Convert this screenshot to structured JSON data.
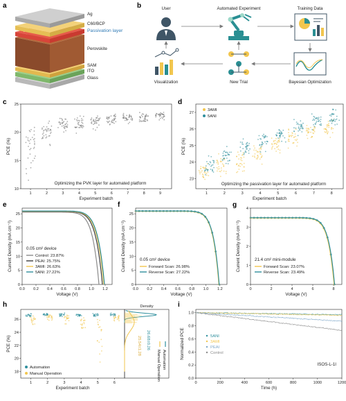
{
  "panel_letters": [
    "a",
    "b",
    "c",
    "d",
    "e",
    "f",
    "g",
    "h",
    "i"
  ],
  "colors": {
    "blue": "#2f8f9d",
    "teal": "#2a8f93",
    "yellow": "#f2c64e",
    "gray": "#8a8a8a",
    "dark": "#3b3b3b",
    "lightblue": "#7fa8c9",
    "orange": "#f0a040",
    "red": "#e14b45"
  },
  "panel_a": {
    "layers": [
      "Ag",
      "C60/BCP",
      "Passivation layer",
      "Perovskite",
      "SAM",
      "ITO",
      "Glass"
    ]
  },
  "panel_b": {
    "nodes": [
      "User",
      "Automated Experiment",
      "Training Data",
      "Visualization",
      "New Trial",
      "Bayesian Optimization"
    ]
  },
  "chart_data": [
    {
      "panel": "c",
      "type": "scatter",
      "xlabel": "Experiment batch",
      "ylabel": "PCE (%)",
      "x_ticks": [
        "1",
        "2",
        "3",
        "4",
        "5",
        "6",
        "7",
        "8",
        "9"
      ],
      "y_ticks": [
        "10",
        "15",
        "20",
        "25"
      ],
      "ylim": [
        10,
        25
      ],
      "annotation": "Optimizing the PVK layer for automated platform",
      "batches": [
        {
          "batch": 1,
          "mean": 18.0,
          "min": 11.5,
          "max": 22.0
        },
        {
          "batch": 2,
          "mean": 20.0,
          "min": 17.5,
          "max": 22.0
        },
        {
          "batch": 3,
          "mean": 21.3,
          "min": 20.0,
          "max": 22.7
        },
        {
          "batch": 4,
          "mean": 21.6,
          "min": 19.8,
          "max": 23.0
        },
        {
          "batch": 5,
          "mean": 22.0,
          "min": 20.3,
          "max": 23.3
        },
        {
          "batch": 6,
          "mean": 22.3,
          "min": 21.0,
          "max": 23.4
        },
        {
          "batch": 7,
          "mean": 22.6,
          "min": 21.5,
          "max": 23.5
        },
        {
          "batch": 8,
          "mean": 22.5,
          "min": 21.2,
          "max": 23.6
        },
        {
          "batch": 9,
          "mean": 23.0,
          "min": 22.2,
          "max": 23.6
        }
      ]
    },
    {
      "panel": "d",
      "type": "scatter",
      "xlabel": "Experiment batch",
      "ylabel": "PCE (%)",
      "x_ticks": [
        "1",
        "2",
        "3",
        "4",
        "5",
        "6",
        "7",
        "8"
      ],
      "y_ticks": [
        "23",
        "24",
        "25",
        "26",
        "27"
      ],
      "ylim": [
        22.4,
        27.5
      ],
      "annotation": "Optimizing the passivation layer for automated platform",
      "series": [
        {
          "name": "3AMI",
          "color": "#f2c64e",
          "batches": [
            {
              "batch": 1,
              "mean": 23.4,
              "min": 22.6,
              "max": 24.0
            },
            {
              "batch": 2,
              "mean": 23.8,
              "min": 23.0,
              "max": 24.5
            },
            {
              "batch": 3,
              "mean": 24.1,
              "min": 23.3,
              "max": 24.8
            },
            {
              "batch": 4,
              "mean": 24.5,
              "min": 23.8,
              "max": 25.1
            },
            {
              "batch": 5,
              "mean": 25.0,
              "min": 24.3,
              "max": 25.6
            },
            {
              "batch": 6,
              "mean": 25.4,
              "min": 24.8,
              "max": 26.0
            },
            {
              "batch": 7,
              "mean": 25.8,
              "min": 25.2,
              "max": 26.3
            },
            {
              "batch": 8,
              "mean": 26.0,
              "min": 25.4,
              "max": 26.6
            }
          ]
        },
        {
          "name": "5ANI",
          "color": "#2f8f9d",
          "batches": [
            {
              "batch": 1,
              "mean": 23.8,
              "min": 23.2,
              "max": 24.5
            },
            {
              "batch": 2,
              "mean": 24.4,
              "min": 23.7,
              "max": 25.0
            },
            {
              "batch": 3,
              "mean": 24.9,
              "min": 24.2,
              "max": 25.5
            },
            {
              "batch": 4,
              "mean": 25.3,
              "min": 24.6,
              "max": 25.8
            },
            {
              "batch": 5,
              "mean": 25.7,
              "min": 25.2,
              "max": 26.2
            },
            {
              "batch": 6,
              "mean": 26.1,
              "min": 25.5,
              "max": 26.6
            },
            {
              "batch": 7,
              "mean": 26.5,
              "min": 25.9,
              "max": 27.0
            },
            {
              "batch": 8,
              "mean": 26.7,
              "min": 26.2,
              "max": 27.2
            }
          ]
        }
      ]
    },
    {
      "panel": "e",
      "type": "line",
      "xlabel": "Voltage (V)",
      "ylabel": "Current Density (mA cm⁻²)",
      "x_ticks": [
        "0.0",
        "0.2",
        "0.4",
        "0.6",
        "0.8",
        "1.0",
        "1.2"
      ],
      "xlim": [
        0,
        1.3
      ],
      "y_ticks": [
        "0",
        "5",
        "10",
        "15",
        "20",
        "25"
      ],
      "ylim": [
        0,
        27
      ],
      "annotation": "0.05 cm² device",
      "series": [
        {
          "name": "Control: 23.87%",
          "color": "#8a8a8a",
          "jsc": 25.6,
          "voc": 1.11
        },
        {
          "name": "PEAI: 25.75%",
          "color": "#3b3b3b",
          "jsc": 25.8,
          "voc": 1.16
        },
        {
          "name": "3AMI: 26.63%",
          "color": "#f2c64e",
          "jsc": 25.9,
          "voc": 1.18
        },
        {
          "name": "5ANI: 27.22%",
          "color": "#2f8f9d",
          "jsc": 26.0,
          "voc": 1.19
        }
      ]
    },
    {
      "panel": "f",
      "type": "line",
      "xlabel": "Voltage (V)",
      "ylabel": "Current Density (mA cm⁻²)",
      "x_ticks": [
        "0.0",
        "0.2",
        "0.4",
        "0.6",
        "0.8",
        "1.0",
        "1.2"
      ],
      "xlim": [
        0,
        1.3
      ],
      "y_ticks": [
        "0",
        "5",
        "10",
        "15",
        "20",
        "25"
      ],
      "ylim": [
        0,
        27
      ],
      "annotation": "0.05 cm² device",
      "series": [
        {
          "name": "Forward Scan: 26.98%",
          "color": "#f2c64e",
          "jsc": 25.9,
          "voc": 1.185
        },
        {
          "name": "Reverse Scan: 27.22%",
          "color": "#2f8f9d",
          "jsc": 26.0,
          "voc": 1.19
        }
      ]
    },
    {
      "panel": "g",
      "type": "line",
      "xlabel": "Voltage (V)",
      "ylabel": "Current Density (mA cm⁻²)",
      "x_ticks": [
        "0",
        "2",
        "4",
        "6",
        "8"
      ],
      "xlim": [
        0,
        8.8
      ],
      "y_ticks": [
        "0",
        "1",
        "2",
        "3",
        "4"
      ],
      "ylim": [
        0,
        4
      ],
      "annotation": "21.4 cm² mini-module",
      "series": [
        {
          "name": "Forward Scan: 23.07%",
          "color": "#f2c64e",
          "jsc": 3.48,
          "voc": 8.05
        },
        {
          "name": "Reverse Scan: 23.49%",
          "color": "#2f8f9d",
          "jsc": 3.5,
          "voc": 8.1
        }
      ]
    },
    {
      "panel": "h",
      "type": "scatter",
      "xlabel": "Experiment batch",
      "ylabel": "PCE (%)",
      "x_ticks": [
        "1",
        "2",
        "3",
        "4",
        "5",
        "6"
      ],
      "y_ticks": [
        "18",
        "20",
        "22",
        "24",
        "26"
      ],
      "ylim": [
        17,
        27.5
      ],
      "density_title": "Density",
      "density_labels": [
        "26.68±0.26",
        "25.54±1.28"
      ],
      "density_legend": [
        "Automation",
        "Manual Operation"
      ],
      "series": [
        {
          "name": "Automation",
          "color": "#2f8f9d",
          "batches": [
            {
              "batch": 1,
              "mean": 26.6,
              "min": 26.3,
              "max": 26.9
            },
            {
              "batch": 2,
              "mean": 26.7,
              "min": 26.4,
              "max": 27.0
            },
            {
              "batch": 3,
              "mean": 26.7,
              "min": 26.4,
              "max": 27.0
            },
            {
              "batch": 4,
              "mean": 26.6,
              "min": 26.3,
              "max": 26.9
            },
            {
              "batch": 5,
              "mean": 26.7,
              "min": 26.4,
              "max": 27.0
            },
            {
              "batch": 6,
              "mean": 26.7,
              "min": 26.4,
              "max": 27.0
            }
          ]
        },
        {
          "name": "Manual Operation",
          "color": "#f2c64e",
          "batches": [
            {
              "batch": 1,
              "mean": 26.0,
              "min": 25.2,
              "max": 26.6
            },
            {
              "batch": 2,
              "mean": 26.4,
              "min": 25.8,
              "max": 26.8
            },
            {
              "batch": 3,
              "mean": 26.2,
              "min": 25.0,
              "max": 26.7
            },
            {
              "batch": 4,
              "mean": 25.6,
              "min": 24.5,
              "max": 26.5
            },
            {
              "batch": 5,
              "mean": 24.0,
              "min": 18.0,
              "max": 26.2
            },
            {
              "batch": 6,
              "mean": 26.3,
              "min": 25.5,
              "max": 26.8
            }
          ]
        }
      ]
    },
    {
      "panel": "i",
      "type": "line",
      "xlabel": "Time (h)",
      "ylabel": "Normalized PCE",
      "x_ticks": [
        "0",
        "200",
        "400",
        "600",
        "800",
        "1000",
        "1200"
      ],
      "xlim": [
        0,
        1200
      ],
      "y_ticks": [
        "0.0",
        "0.2",
        "0.4",
        "0.6",
        "0.8",
        "1.0"
      ],
      "ylim": [
        0,
        1.05
      ],
      "annotation": "ISOS-L-1I",
      "series": [
        {
          "name": "5ANI",
          "color": "#2f8f9d",
          "final": 0.97
        },
        {
          "name": "3AMI",
          "color": "#f2c64e",
          "final": 0.96
        },
        {
          "name": "PEAI",
          "color": "#7fa8c9",
          "final": 0.87
        },
        {
          "name": "Control",
          "color": "#8a8a8a",
          "final": 0.73
        }
      ]
    }
  ]
}
